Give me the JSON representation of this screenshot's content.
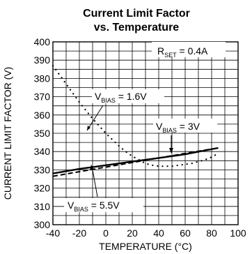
{
  "chart_data": {
    "type": "line",
    "title_line1": "Current Limit Factor",
    "title_line2": "vs. Temperature",
    "xlabel": "TEMPERATURE (°C)",
    "ylabel": "CURRENT LIMIT FACTOR (V)",
    "xlim": [
      -40,
      100
    ],
    "ylim": [
      300,
      400
    ],
    "xticks": [
      -40,
      -20,
      0,
      20,
      40,
      60,
      80,
      100
    ],
    "yticks": [
      300,
      310,
      320,
      330,
      340,
      350,
      360,
      370,
      380,
      390,
      400
    ],
    "grid": true,
    "series": [
      {
        "style": "solid",
        "x": [
          -40,
          -20,
          0,
          20,
          40,
          60,
          85
        ],
        "y": [
          328,
          330.5,
          332.5,
          334.5,
          336.5,
          338.5,
          342
        ]
      },
      {
        "style": "dashed",
        "x": [
          -40,
          -20,
          0,
          20,
          40,
          60,
          85
        ],
        "y": [
          326.5,
          329,
          331.5,
          334,
          336.5,
          339,
          342
        ]
      },
      {
        "style": "dotted",
        "x": [
          -40,
          -35,
          -30,
          -25,
          -20,
          -15,
          -10,
          -5,
          0,
          5,
          10,
          15,
          20,
          25,
          30,
          35,
          40,
          45,
          50,
          55,
          60,
          65,
          70,
          75,
          80,
          85
        ],
        "y": [
          387,
          382,
          377,
          372,
          367,
          362.5,
          358,
          354,
          350,
          346.5,
          343,
          340,
          337.5,
          335.5,
          333.5,
          332.5,
          332,
          332,
          332,
          332.5,
          333,
          333.5,
          334.5,
          335.5,
          337,
          339
        ]
      }
    ],
    "annotations": {
      "rset": {
        "main": "R",
        "sub": "SET",
        "rest": " = 0.4A"
      },
      "vbias_16": {
        "main": "V",
        "sub": "BIAS",
        "rest": " = 1.6V"
      },
      "vbias_3": {
        "main": "V",
        "sub": "BIAS",
        "rest": " = 3V"
      },
      "vbias_55": {
        "main": "V",
        "sub": "BIAS",
        "rest": " = 5.5V"
      }
    }
  }
}
